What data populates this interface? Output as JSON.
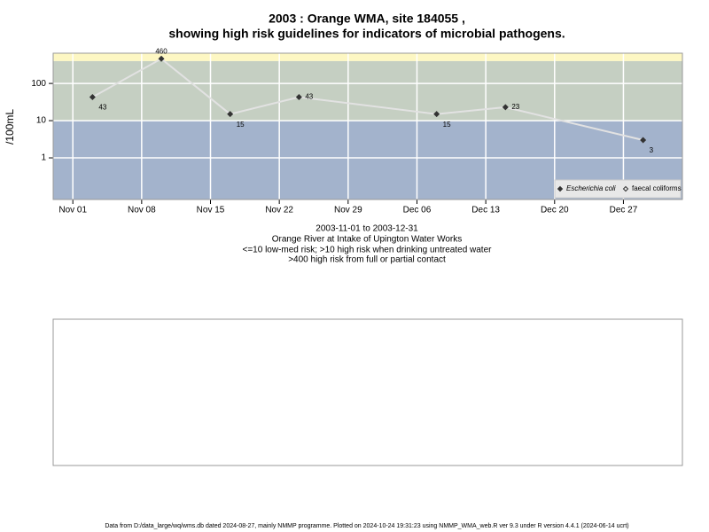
{
  "chart_data": {
    "type": "line",
    "title": [
      "2003 : Orange WMA, site 184055 ,",
      "showing high risk guidelines for indicators of microbial pathogens."
    ],
    "y_label": "/100mL",
    "notes": [
      "2003-11-01 to 2003-12-31",
      "Orange River at Intake of Upington Water Works",
      "<=10 low-med risk; >10 high risk when drinking untreated water",
      ">400 high risk from full or partial contact"
    ],
    "x": [
      "2003-11-03",
      "2003-11-10",
      "2003-11-17",
      "2003-11-24",
      "2003-12-08",
      "2003-12-15",
      "2003-12-29"
    ],
    "series": [
      {
        "name": "Escherichia coli",
        "color": "#333333",
        "line_color": "#e2e2e2",
        "values": [
          43,
          460,
          15,
          43,
          15,
          23,
          3
        ]
      },
      {
        "name": "faecal coliforms",
        "color": "#333333",
        "values": [
          null,
          null,
          null,
          null,
          null,
          null,
          null
        ]
      }
    ],
    "xlim": [
      "2003-10-30",
      "2004-01-02"
    ],
    "xticks": [
      {
        "value": "2003-11-01",
        "label": "Nov 01"
      },
      {
        "value": "2003-11-08",
        "label": "Nov 08"
      },
      {
        "value": "2003-11-15",
        "label": "Nov 15"
      },
      {
        "value": "2003-11-22",
        "label": "Nov 22"
      },
      {
        "value": "2003-11-29",
        "label": "Nov 29"
      },
      {
        "value": "2003-12-06",
        "label": "Dec 06"
      },
      {
        "value": "2003-12-13",
        "label": "Dec 13"
      },
      {
        "value": "2003-12-20",
        "label": "Dec 20"
      },
      {
        "value": "2003-12-27",
        "label": "Dec 27"
      }
    ],
    "ylim": [
      0.076,
      650
    ],
    "yticks": [
      1,
      10,
      100
    ],
    "log_y": true,
    "grid": true,
    "thresholds": [
      10,
      400
    ],
    "band_colors": [
      "#a3b3cc",
      "#c5cfc2",
      "#fdf7c3"
    ],
    "legend": "lower right",
    "footer": "Data from D:/data_large/wq/wms.db dated 2024-08-27, mainly NMMP programme. Plotted on 2024-10-24 19:31:23 using NMMP_WMA_web.R ver 9.3 under R version 4.4.1 (2024-06-14 ucrt)"
  }
}
